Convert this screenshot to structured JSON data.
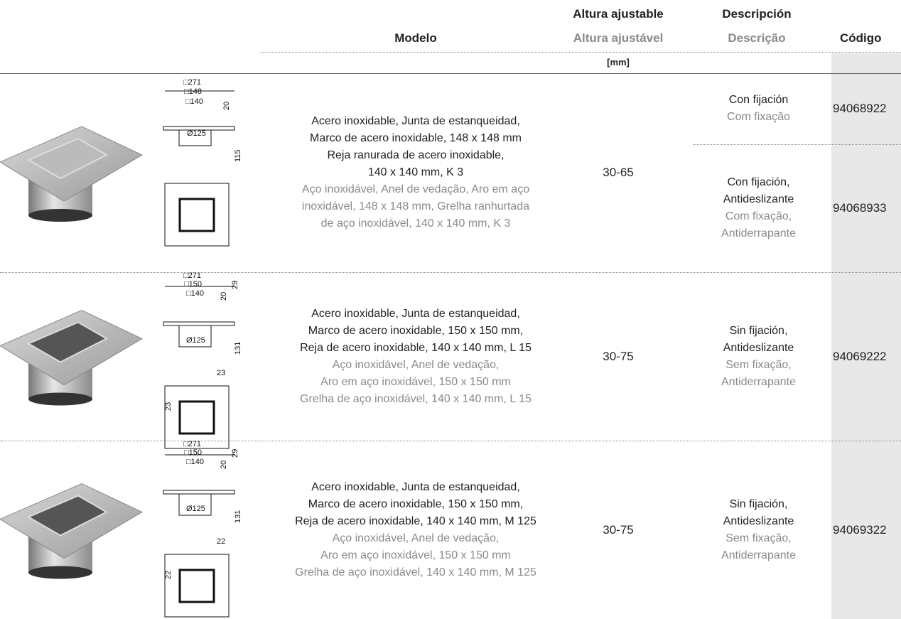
{
  "header": {
    "modelo": "Modelo",
    "altura": "Altura ajustable",
    "altura_pt": "Altura ajustável",
    "unit": "[mm]",
    "descripcion": "Descripción",
    "descripcion_pt": "Descrição",
    "codigo": "Código"
  },
  "rows": [
    {
      "dimensions": [
        "□271",
        "□148",
        "□140",
        "20",
        "Ø125",
        "115"
      ],
      "model_es": [
        "Acero inoxidable, Junta de estanqueidad,",
        "Marco de acero inoxidable, 148 x 148 mm",
        "Reja ranurada de acero inoxidable,",
        "140 x 140 mm, K 3"
      ],
      "model_pt": [
        "Aço inoxidável, Anel de vedação, Aro em aço",
        "inoxidável, 148 x 148 mm, Grelha ranhurtada",
        "de aço inoxidável, 140 x 140 mm, K 3"
      ],
      "height": "30-65",
      "variants": [
        {
          "es": [
            "Con fijación"
          ],
          "pt": [
            "Com fixação"
          ],
          "code": "94068922"
        },
        {
          "es": [
            "Con fijación,",
            "Antideslizante"
          ],
          "pt": [
            "Com fixação,",
            "Antiderrapante"
          ],
          "code": "94068933"
        }
      ]
    },
    {
      "dimensions": [
        "□271",
        "□150",
        "□140",
        "20",
        "29",
        "Ø125",
        "131",
        "23",
        "23"
      ],
      "model_es": [
        "Acero inoxidable, Junta de estanqueidad,",
        "Marco de acero inoxidable, 150 x 150 mm,",
        "Reja de acero inoxidable, 140 x 140 mm, L 15"
      ],
      "model_pt": [
        "Aço inoxidável, Anel de vedação,",
        "Aro em aço inoxidável, 150 x 150 mm",
        "Grelha de aço inoxidável, 140 x 140 mm, L 15"
      ],
      "height": "30-75",
      "variants": [
        {
          "es": [
            "Sin fijación,",
            "Antideslizante"
          ],
          "pt": [
            "Sem fixação,",
            "Antiderrapante"
          ],
          "code": "94069222"
        }
      ]
    },
    {
      "dimensions": [
        "□271",
        "□150",
        "□140",
        "20",
        "29",
        "Ø125",
        "131",
        "22",
        "22"
      ],
      "model_es": [
        "Acero inoxidable, Junta de estanqueidad,",
        "Marco de acero inoxidable, 150 x 150 mm,",
        "Reja de acero inoxidable, 140 x 140 mm, M 125"
      ],
      "model_pt": [
        "Aço inoxidável, Anel de vedação,",
        "Aro em aço inoxidável, 150 x 150 mm",
        "Grelha de aço inoxidável, 140 x 140 mm, M 125"
      ],
      "height": "30-75",
      "variants": [
        {
          "es": [
            "Sin fijación,",
            "Antideslizante"
          ],
          "pt": [
            "Sem fixação,",
            "Antiderrapante"
          ],
          "code": "94069322"
        }
      ]
    }
  ]
}
